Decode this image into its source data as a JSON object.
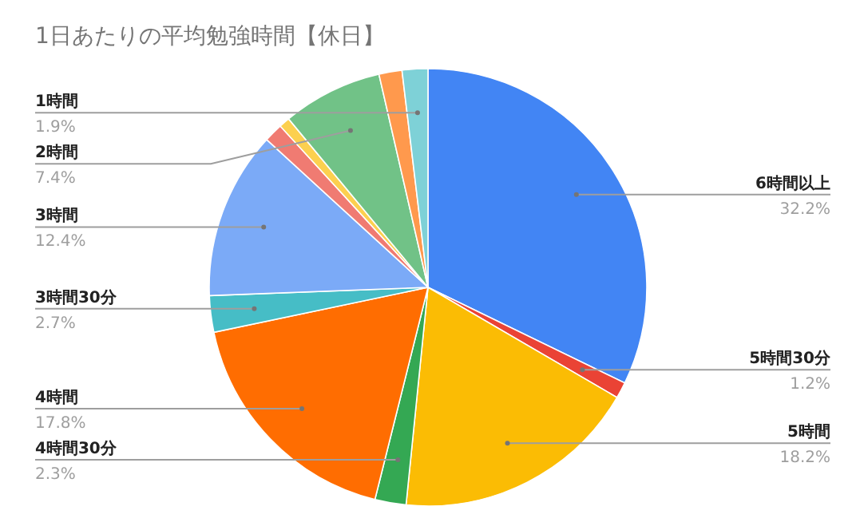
{
  "chart_data": {
    "type": "pie",
    "title": "1日あたりの平均勉強時間【休日】",
    "categories": [
      "6時間以上",
      "5時間30分",
      "5時間",
      "4時間30分",
      "4時間",
      "3時間30分",
      "3時間",
      null,
      null,
      "2時間",
      null,
      "1時間"
    ],
    "values": [
      32.2,
      1.2,
      18.2,
      2.3,
      17.8,
      2.7,
      12.4,
      1.4,
      0.8,
      7.4,
      1.7,
      1.9
    ],
    "colors": [
      "#4285f4",
      "#ea4335",
      "#fbbc04",
      "#34a853",
      "#ff6d01",
      "#46bdc6",
      "#7baaf7",
      "#f07b72",
      "#fcd04f",
      "#71c287",
      "#ff994d",
      "#7ed1d7"
    ],
    "value_labels": [
      "32.2%",
      "1.2%",
      "18.2%",
      "2.3%",
      "17.8%",
      "2.7%",
      "12.4%",
      null,
      null,
      "7.4%",
      null,
      "1.9%"
    ]
  }
}
